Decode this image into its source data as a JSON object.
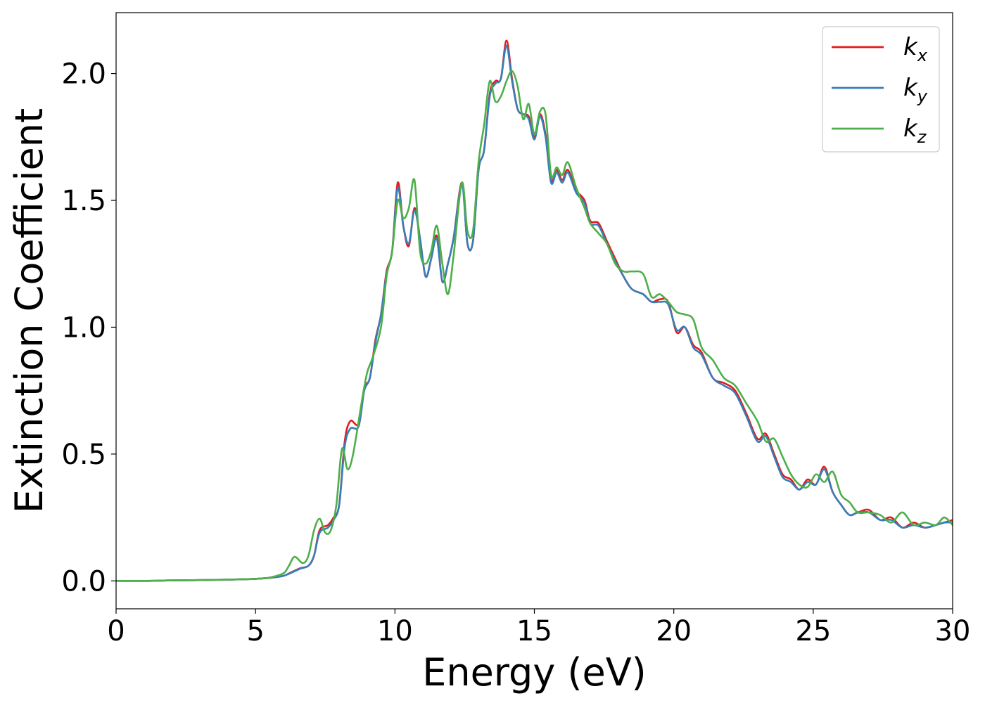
{
  "chart_data": {
    "type": "line",
    "title": "",
    "xlabel": "Energy (eV)",
    "ylabel": "Extinction Coefficient",
    "xlim": [
      0,
      30
    ],
    "ylim": [
      -0.11,
      2.24
    ],
    "xticks": [
      0,
      5,
      10,
      15,
      20,
      25,
      30
    ],
    "xtick_labels": [
      "0",
      "5",
      "10",
      "15",
      "20",
      "25",
      "30"
    ],
    "yticks": [
      0.0,
      0.5,
      1.0,
      1.5,
      2.0
    ],
    "ytick_labels": [
      "0.0",
      "0.5",
      "1.0",
      "1.5",
      "2.0"
    ],
    "grid": false,
    "legend_position": "top-right",
    "series": [
      {
        "name": "k_x",
        "color": "#e41a1c",
        "x": [
          0,
          1,
          2,
          3,
          4,
          5,
          5.5,
          6,
          6.3,
          6.6,
          6.9,
          7.1,
          7.3,
          7.6,
          7.8,
          8.0,
          8.2,
          8.4,
          8.7,
          8.9,
          9.1,
          9.3,
          9.5,
          9.7,
          9.9,
          10.1,
          10.3,
          10.5,
          10.7,
          10.9,
          11.1,
          11.3,
          11.5,
          11.7,
          11.9,
          12.1,
          12.4,
          12.6,
          12.8,
          13.0,
          13.2,
          13.4,
          13.6,
          13.8,
          14.0,
          14.2,
          14.4,
          14.6,
          14.8,
          15.0,
          15.2,
          15.4,
          15.6,
          15.8,
          16.0,
          16.2,
          16.5,
          16.8,
          17.0,
          17.3,
          17.6,
          17.9,
          18.2,
          18.5,
          18.9,
          19.2,
          19.5,
          19.8,
          20.1,
          20.4,
          20.7,
          21.0,
          21.4,
          21.8,
          22.2,
          22.6,
          23.0,
          23.3,
          23.6,
          23.9,
          24.2,
          24.5,
          24.8,
          25.1,
          25.4,
          25.7,
          26.0,
          26.3,
          26.6,
          27.0,
          27.4,
          27.8,
          28.2,
          28.6,
          29.0,
          29.4,
          29.7,
          30.0
        ],
        "y": [
          0.0,
          0.0,
          0.002,
          0.003,
          0.005,
          0.008,
          0.012,
          0.02,
          0.035,
          0.05,
          0.06,
          0.1,
          0.2,
          0.22,
          0.25,
          0.3,
          0.55,
          0.63,
          0.62,
          0.76,
          0.8,
          0.95,
          1.05,
          1.22,
          1.3,
          1.57,
          1.4,
          1.32,
          1.47,
          1.35,
          1.2,
          1.27,
          1.36,
          1.18,
          1.25,
          1.35,
          1.57,
          1.33,
          1.34,
          1.62,
          1.7,
          1.92,
          1.97,
          1.98,
          2.13,
          1.98,
          1.86,
          1.84,
          1.83,
          1.75,
          1.84,
          1.76,
          1.58,
          1.62,
          1.58,
          1.62,
          1.54,
          1.5,
          1.42,
          1.41,
          1.34,
          1.27,
          1.2,
          1.15,
          1.13,
          1.1,
          1.11,
          1.1,
          0.98,
          1.0,
          0.93,
          0.9,
          0.8,
          0.78,
          0.75,
          0.66,
          0.56,
          0.58,
          0.5,
          0.42,
          0.4,
          0.36,
          0.4,
          0.38,
          0.45,
          0.35,
          0.3,
          0.26,
          0.27,
          0.28,
          0.24,
          0.25,
          0.21,
          0.23,
          0.21,
          0.22,
          0.23,
          0.24
        ]
      },
      {
        "name": "k_y",
        "color": "#377eb8",
        "x": [
          0,
          1,
          2,
          3,
          4,
          5,
          5.5,
          6,
          6.3,
          6.6,
          6.9,
          7.1,
          7.3,
          7.6,
          7.8,
          8.0,
          8.2,
          8.4,
          8.7,
          8.9,
          9.1,
          9.3,
          9.5,
          9.7,
          9.9,
          10.1,
          10.3,
          10.5,
          10.7,
          10.9,
          11.1,
          11.3,
          11.5,
          11.7,
          11.9,
          12.1,
          12.4,
          12.6,
          12.8,
          13.0,
          13.2,
          13.4,
          13.6,
          13.8,
          14.0,
          14.2,
          14.4,
          14.6,
          14.8,
          15.0,
          15.2,
          15.4,
          15.6,
          15.8,
          16.0,
          16.2,
          16.5,
          16.8,
          17.0,
          17.3,
          17.6,
          17.9,
          18.2,
          18.5,
          18.9,
          19.2,
          19.5,
          19.8,
          20.1,
          20.4,
          20.7,
          21.0,
          21.4,
          21.8,
          22.2,
          22.6,
          23.0,
          23.3,
          23.6,
          23.9,
          24.2,
          24.5,
          24.8,
          25.1,
          25.4,
          25.7,
          26.0,
          26.3,
          26.6,
          27.0,
          27.4,
          27.8,
          28.2,
          28.6,
          29.0,
          29.4,
          29.7,
          30.0
        ],
        "y": [
          0.0,
          0.0,
          0.002,
          0.003,
          0.005,
          0.008,
          0.012,
          0.02,
          0.033,
          0.048,
          0.06,
          0.1,
          0.19,
          0.21,
          0.24,
          0.3,
          0.53,
          0.6,
          0.61,
          0.75,
          0.8,
          0.94,
          1.05,
          1.21,
          1.3,
          1.55,
          1.4,
          1.33,
          1.46,
          1.35,
          1.2,
          1.27,
          1.35,
          1.18,
          1.25,
          1.35,
          1.56,
          1.33,
          1.34,
          1.62,
          1.7,
          1.91,
          1.96,
          1.98,
          2.11,
          1.97,
          1.86,
          1.84,
          1.82,
          1.74,
          1.83,
          1.75,
          1.57,
          1.61,
          1.57,
          1.61,
          1.53,
          1.49,
          1.41,
          1.4,
          1.33,
          1.26,
          1.2,
          1.15,
          1.13,
          1.1,
          1.1,
          1.09,
          0.99,
          1.0,
          0.92,
          0.89,
          0.8,
          0.77,
          0.74,
          0.65,
          0.55,
          0.57,
          0.49,
          0.41,
          0.39,
          0.36,
          0.39,
          0.38,
          0.44,
          0.35,
          0.3,
          0.26,
          0.27,
          0.27,
          0.24,
          0.24,
          0.21,
          0.22,
          0.21,
          0.22,
          0.23,
          0.23
        ]
      },
      {
        "name": "k_z",
        "color": "#4daf4a",
        "x": [
          0,
          1,
          2,
          3,
          4,
          5,
          5.5,
          6,
          6.2,
          6.4,
          6.7,
          6.9,
          7.1,
          7.3,
          7.5,
          7.7,
          7.9,
          8.1,
          8.3,
          8.5,
          8.8,
          9.0,
          9.2,
          9.5,
          9.7,
          9.9,
          10.1,
          10.3,
          10.5,
          10.7,
          10.9,
          11.1,
          11.3,
          11.5,
          11.7,
          11.9,
          12.1,
          12.4,
          12.6,
          12.8,
          13.0,
          13.2,
          13.4,
          13.6,
          13.8,
          14.0,
          14.2,
          14.4,
          14.6,
          14.8,
          15.0,
          15.2,
          15.4,
          15.6,
          15.8,
          16.0,
          16.2,
          16.5,
          16.8,
          17.0,
          17.3,
          17.6,
          17.9,
          18.2,
          18.5,
          18.9,
          19.2,
          19.5,
          19.8,
          20.1,
          20.4,
          20.7,
          21.0,
          21.4,
          21.8,
          22.2,
          22.6,
          23.0,
          23.3,
          23.6,
          23.9,
          24.2,
          24.5,
          24.8,
          25.1,
          25.4,
          25.7,
          26.0,
          26.3,
          26.6,
          27.0,
          27.4,
          27.8,
          28.2,
          28.6,
          29.0,
          29.4,
          29.7,
          30.0
        ],
        "y": [
          0.0,
          0.0,
          0.002,
          0.003,
          0.005,
          0.008,
          0.013,
          0.03,
          0.06,
          0.095,
          0.07,
          0.1,
          0.2,
          0.245,
          0.19,
          0.2,
          0.3,
          0.52,
          0.44,
          0.5,
          0.7,
          0.82,
          0.88,
          1.0,
          1.2,
          1.3,
          1.5,
          1.43,
          1.47,
          1.58,
          1.3,
          1.25,
          1.3,
          1.4,
          1.25,
          1.13,
          1.28,
          1.57,
          1.38,
          1.38,
          1.65,
          1.8,
          1.97,
          1.89,
          1.91,
          1.97,
          2.01,
          1.95,
          1.82,
          1.88,
          1.76,
          1.85,
          1.84,
          1.6,
          1.63,
          1.6,
          1.65,
          1.55,
          1.47,
          1.41,
          1.37,
          1.33,
          1.25,
          1.22,
          1.22,
          1.21,
          1.12,
          1.13,
          1.1,
          1.06,
          1.05,
          1.03,
          0.92,
          0.87,
          0.8,
          0.77,
          0.7,
          0.63,
          0.55,
          0.56,
          0.49,
          0.42,
          0.38,
          0.37,
          0.42,
          0.39,
          0.43,
          0.34,
          0.31,
          0.27,
          0.27,
          0.26,
          0.23,
          0.27,
          0.22,
          0.23,
          0.22,
          0.25,
          0.22
        ]
      }
    ]
  }
}
